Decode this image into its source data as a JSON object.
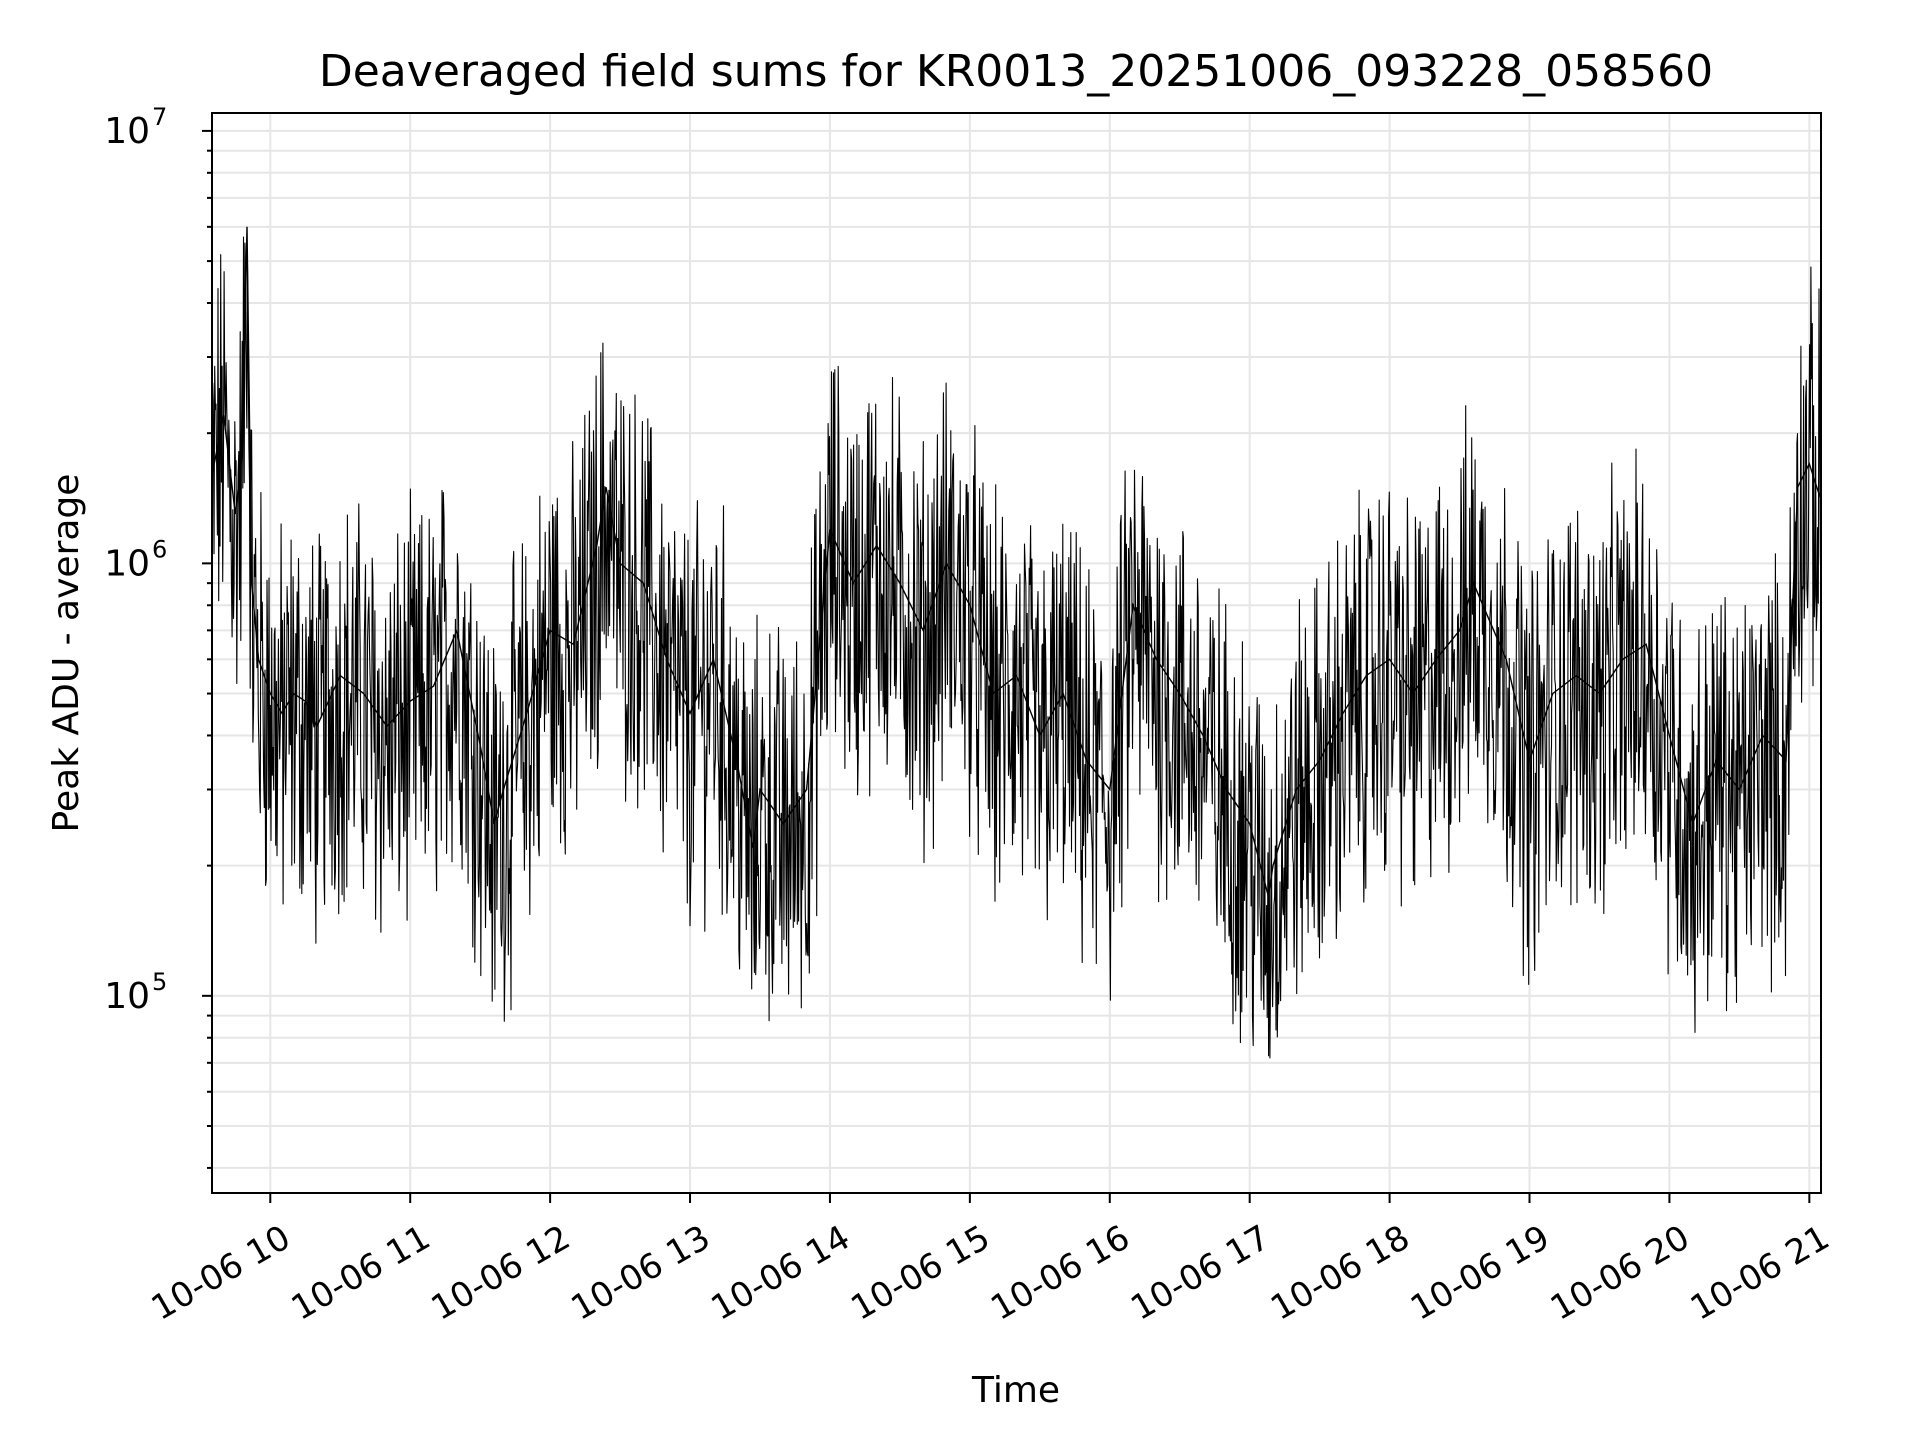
{
  "chart_data": {
    "type": "line",
    "title": "Deaveraged field sums for KR0013_20251006_093228_058560",
    "xlabel": "Time",
    "ylabel": "Peak ADU - average",
    "yscale": "log",
    "ylim": [
      35000,
      11000000
    ],
    "xlim": [
      "2025-10-06 09:35",
      "2025-10-06 21:05"
    ],
    "x_tick_labels": [
      "10-06 10",
      "10-06 11",
      "10-06 12",
      "10-06 13",
      "10-06 14",
      "10-06 15",
      "10-06 16",
      "10-06 17",
      "10-06 18",
      "10-06 19",
      "10-06 20",
      "10-06 21"
    ],
    "y_tick_labels": [
      {
        "base": "10",
        "exp": "5",
        "value": 100000
      },
      {
        "base": "10",
        "exp": "6",
        "value": 1000000
      },
      {
        "base": "10",
        "exp": "7",
        "value": 10000000
      }
    ],
    "grid": true,
    "line_color": "#000000",
    "grid_color": "#e6e6e6",
    "series": [
      {
        "x": [
          "09:35",
          "09:40",
          "09:45",
          "09:48",
          "09:50",
          "09:52",
          "09:55",
          "10:00",
          "10:05",
          "10:10",
          "10:15",
          "10:20",
          "10:30",
          "10:40",
          "10:50",
          "11:00",
          "11:10",
          "11:20",
          "11:30",
          "11:36",
          "11:40",
          "11:50",
          "12:00",
          "12:10",
          "12:20",
          "12:24",
          "12:30",
          "12:40",
          "12:50",
          "13:00",
          "13:10",
          "13:20",
          "13:27",
          "13:30",
          "13:40",
          "13:50",
          "14:00",
          "14:10",
          "14:20",
          "14:30",
          "14:40",
          "14:50",
          "15:00",
          "15:10",
          "15:20",
          "15:30",
          "15:40",
          "15:50",
          "16:00",
          "16:10",
          "16:20",
          "16:30",
          "16:40",
          "16:50",
          "17:00",
          "17:08",
          "17:10",
          "17:20",
          "17:30",
          "17:40",
          "17:50",
          "18:00",
          "18:10",
          "18:20",
          "18:30",
          "18:36",
          "18:40",
          "18:50",
          "19:00",
          "19:10",
          "19:20",
          "19:30",
          "19:40",
          "19:50",
          "20:00",
          "20:10",
          "20:20",
          "20:30",
          "20:40",
          "20:50",
          "20:55",
          "21:00",
          "21:05"
        ],
        "values": [
          1600000,
          2200000,
          1300000,
          1800000,
          6000000,
          900000,
          600000,
          500000,
          450000,
          500000,
          480000,
          420000,
          550000,
          500000,
          420000,
          480000,
          520000,
          700000,
          380000,
          250000,
          300000,
          450000,
          700000,
          650000,
          1100000,
          1500000,
          1000000,
          900000,
          600000,
          450000,
          600000,
          350000,
          220000,
          300000,
          250000,
          300000,
          1200000,
          900000,
          1100000,
          900000,
          700000,
          1000000,
          800000,
          500000,
          550000,
          400000,
          500000,
          350000,
          300000,
          800000,
          600000,
          500000,
          400000,
          300000,
          250000,
          170000,
          200000,
          300000,
          350000,
          450000,
          550000,
          600000,
          500000,
          600000,
          700000,
          900000,
          800000,
          600000,
          350000,
          500000,
          550000,
          500000,
          600000,
          650000,
          400000,
          250000,
          350000,
          300000,
          400000,
          350000,
          1500000,
          1700000,
          1400000
        ]
      }
    ]
  }
}
